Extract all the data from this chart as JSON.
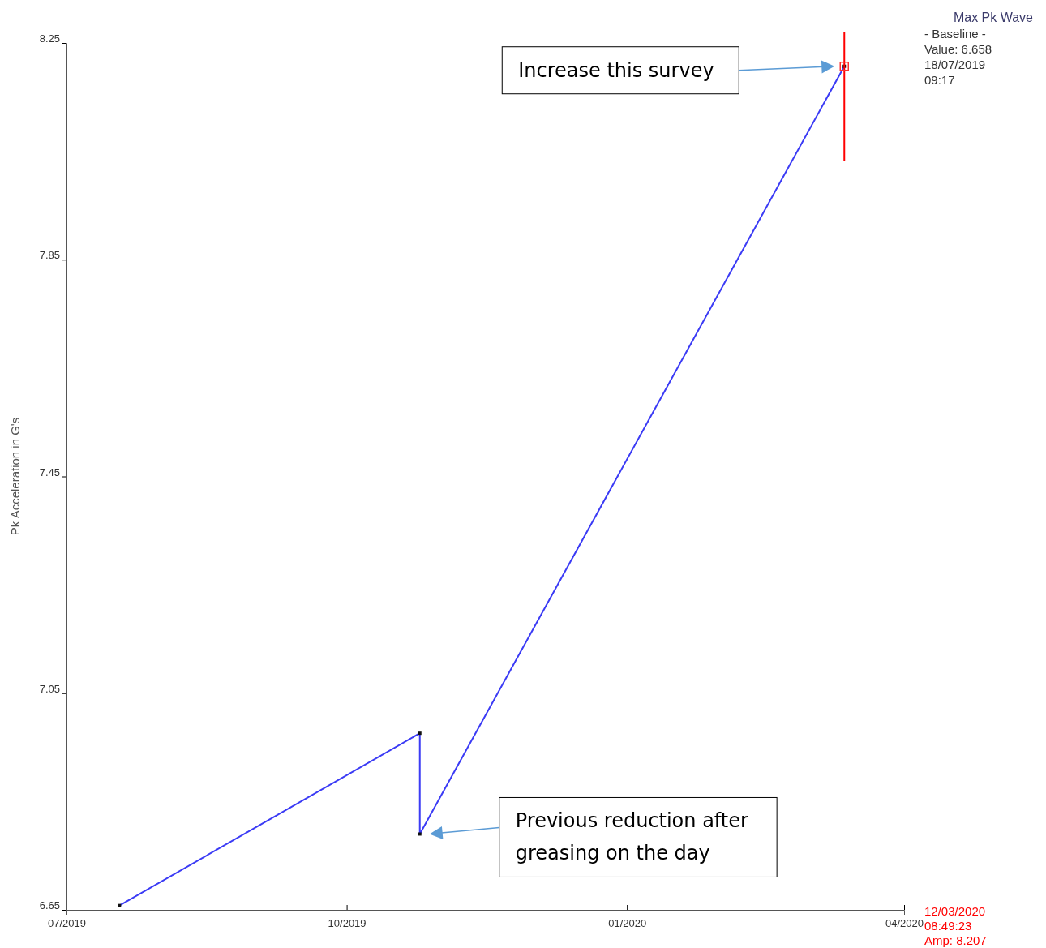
{
  "chart_data": {
    "type": "line",
    "title": "Max Pk Wave",
    "ylabel": "Pk Acceleration in G's",
    "x": [
      "2019-07-18T09:17",
      "2019-10-25",
      "2019-10-25",
      "2020-03-12T08:49"
    ],
    "series": [
      {
        "color": "#3b3bf5",
        "values": [
          6.658,
          6.976,
          6.79,
          8.207
        ]
      }
    ],
    "marker": "square",
    "line_style": "solid",
    "grid": false,
    "xlim": [
      "2019-07-01",
      "2020-04-01"
    ],
    "xticks": [
      {
        "value": "2019-07-01",
        "label": "07/2019"
      },
      {
        "value": "2019-10-01",
        "label": "10/2019"
      },
      {
        "value": "2020-01-01",
        "label": "01/2020"
      },
      {
        "value": "2020-04-01",
        "label": "04/2020"
      }
    ],
    "ylim": [
      6.65,
      8.25
    ],
    "yticks": [
      6.65,
      7.05,
      7.45,
      7.85,
      8.25
    ],
    "ref_lines": [
      {
        "axis": "x",
        "value": "2020-03-12T08:49",
        "label": "12/03/2020\n08:49:23\nAmp: 8.207",
        "color": "#ff0000"
      }
    ],
    "annotations": [
      "- Baseline -\nValue: 6.658\n18/07/2019\n09:17",
      "Increase this survey",
      "Previous reduction after\ngreasing on the day"
    ]
  }
}
